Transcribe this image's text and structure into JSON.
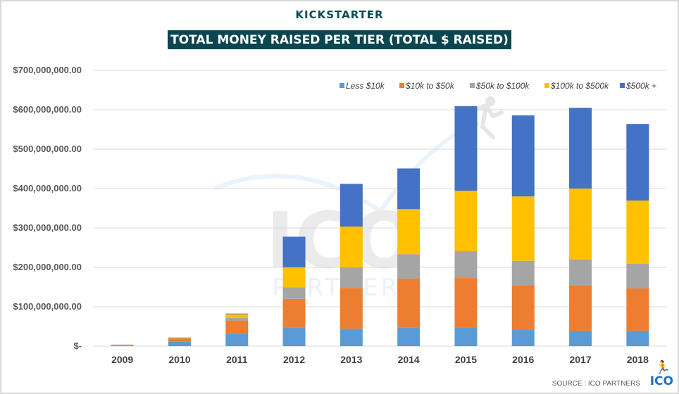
{
  "brand": "KICKSTARTER",
  "title": "TOTAL MONEY RAISED PER TIER (TOTAL $ RAISED)",
  "source": "SOURCE : ICO PARTNERS",
  "logo": {
    "text": "ICO",
    "icon": "runner-icon",
    "watermark_top": "ICO",
    "watermark_bottom": "PARTNERS"
  },
  "chart_data": {
    "type": "bar",
    "stacked": true,
    "title": "TOTAL MONEY RAISED PER TIER (TOTAL $ RAISED)",
    "xlabel": "",
    "ylabel": "",
    "ylim": [
      0,
      700000000
    ],
    "yticks": [
      0,
      100000000,
      200000000,
      300000000,
      400000000,
      500000000,
      600000000,
      700000000
    ],
    "ytick_labels": [
      "$-",
      "$100,000,000.00",
      "$200,000,000.00",
      "$300,000,000.00",
      "$400,000,000.00",
      "$500,000,000.00",
      "$600,000,000.00",
      "$700,000,000.00"
    ],
    "grid": true,
    "legend_position": "top-right",
    "categories": [
      "2009",
      "2010",
      "2011",
      "2012",
      "2013",
      "2014",
      "2015",
      "2016",
      "2017",
      "2018"
    ],
    "series": [
      {
        "name": "Less $10k",
        "color": "#5b9bd5",
        "values": [
          400000,
          11000000,
          31500000,
          47500000,
          44000000,
          47700000,
          48000000,
          41000000,
          39000000,
          39000000
        ]
      },
      {
        "name": "$10k to $50k",
        "color": "#ed7d31",
        "values": [
          2500000,
          9000000,
          33500000,
          72500000,
          103700000,
          123700000,
          125000000,
          112600000,
          116000000,
          107400000
        ]
      },
      {
        "name": "$50k to $100k",
        "color": "#a5a5a5",
        "values": [
          600000,
          1000000,
          6400000,
          29000000,
          52300000,
          62000000,
          68000000,
          63000000,
          64600000,
          62600000
        ]
      },
      {
        "name": "$100k to $500k",
        "color": "#ffc000",
        "values": [
          300000,
          500000,
          9600000,
          51000000,
          103600000,
          114300000,
          153600000,
          163400000,
          180400000,
          160600000
        ]
      },
      {
        "name": "$500k +",
        "color": "#4472c4",
        "values": [
          200000,
          500000,
          1700000,
          77800000,
          108400000,
          103300000,
          214400000,
          205700000,
          205000000,
          194400000
        ]
      }
    ]
  }
}
